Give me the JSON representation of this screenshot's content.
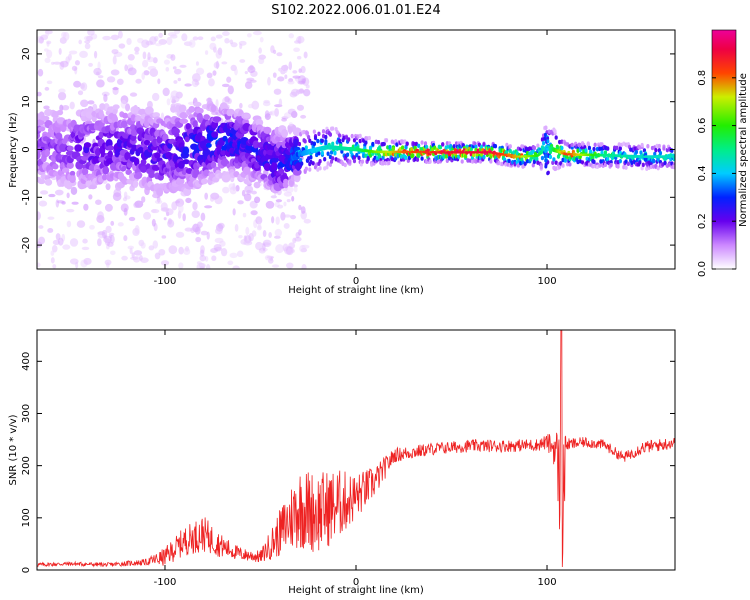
{
  "title": "S102.2022.006.01.01.E24",
  "colors": {
    "snr_line": "#ee2222",
    "axes": "#000000",
    "background": "#ffffff"
  },
  "chart_data": [
    {
      "type": "heatmap",
      "title": "S102.2022.006.01.01.E24",
      "xlabel": "Height of straight line (km)",
      "ylabel": "Frequency (Hz)",
      "xlim": [
        -167,
        167
      ],
      "ylim": [
        -25,
        25
      ],
      "x_ticks": [
        -100,
        0,
        100
      ],
      "x_tick_labels": [
        "-100",
        "0",
        "100"
      ],
      "y_ticks": [
        -20,
        -10,
        0,
        10,
        20
      ],
      "y_tick_labels": [
        "-20",
        "-10",
        "0",
        "10",
        "20"
      ],
      "grid": false,
      "colorbar": {
        "label": "Normalized spectral amplitude",
        "range": [
          0,
          1
        ],
        "ticks": [
          0.0,
          0.2,
          0.4,
          0.6,
          0.8
        ],
        "tick_labels": [
          "0.0",
          "0.2",
          "0.4",
          "0.6",
          "0.8"
        ],
        "colormap": "rainbow (white, violet, blue, cyan, green, yellow, red, magenta)"
      },
      "ridge": [
        {
          "x": -160,
          "y": 0.5,
          "amp": 0.15,
          "width": 5
        },
        {
          "x": -140,
          "y": 0.0,
          "amp": 0.2,
          "width": 5
        },
        {
          "x": -120,
          "y": 0.5,
          "amp": 0.2,
          "width": 5
        },
        {
          "x": -100,
          "y": -1.0,
          "amp": 0.22,
          "width": 5
        },
        {
          "x": -85,
          "y": 0.5,
          "amp": 0.25,
          "width": 5
        },
        {
          "x": -70,
          "y": 2.0,
          "amp": 0.3,
          "width": 4
        },
        {
          "x": -55,
          "y": 0.5,
          "amp": 0.25,
          "width": 4
        },
        {
          "x": -40,
          "y": -3.0,
          "amp": 0.25,
          "width": 4
        },
        {
          "x": -30,
          "y": -1.0,
          "amp": 0.35,
          "width": 2.5
        },
        {
          "x": -15,
          "y": 0.5,
          "amp": 0.45,
          "width": 2
        },
        {
          "x": 0,
          "y": 0.0,
          "amp": 0.5,
          "width": 1.5
        },
        {
          "x": 10,
          "y": -0.5,
          "amp": 0.65,
          "width": 1.2
        },
        {
          "x": 25,
          "y": -0.5,
          "amp": 0.8,
          "width": 1.0
        },
        {
          "x": 50,
          "y": -0.6,
          "amp": 0.9,
          "width": 0.9
        },
        {
          "x": 70,
          "y": -0.6,
          "amp": 0.9,
          "width": 0.9
        },
        {
          "x": 85,
          "y": -1.5,
          "amp": 0.75,
          "width": 1.0
        },
        {
          "x": 95,
          "y": -1.3,
          "amp": 0.6,
          "width": 1.0
        },
        {
          "x": 100,
          "y": 0.5,
          "amp": 0.4,
          "width": 2.5
        },
        {
          "x": 110,
          "y": -1.0,
          "amp": 0.85,
          "width": 1.0
        },
        {
          "x": 130,
          "y": -1.2,
          "amp": 0.5,
          "width": 1.2
        },
        {
          "x": 150,
          "y": -1.5,
          "amp": 0.45,
          "width": 1.2
        },
        {
          "x": 165,
          "y": -1.5,
          "amp": 0.45,
          "width": 1.2
        }
      ]
    },
    {
      "type": "line",
      "xlabel": "Height of straight line (km)",
      "ylabel": "SNR (10 * v/v)",
      "xlim": [
        -167,
        167
      ],
      "ylim": [
        0,
        460
      ],
      "x_ticks": [
        -100,
        0,
        100
      ],
      "x_tick_labels": [
        "-100",
        "0",
        "100"
      ],
      "y_ticks": [
        0,
        100,
        200,
        300,
        400
      ],
      "y_tick_labels": [
        "0",
        "100",
        "200",
        "300",
        "400"
      ],
      "grid": false,
      "series": [
        {
          "color": "#ee2222",
          "x": [
            -167,
            -150,
            -130,
            -110,
            -100,
            -90,
            -80,
            -70,
            -60,
            -50,
            -40,
            -30,
            -20,
            -10,
            0,
            10,
            20,
            40,
            60,
            80,
            95,
            100,
            105,
            108,
            110,
            120,
            130,
            140,
            150,
            160,
            167
          ],
          "y": [
            10,
            12,
            10,
            15,
            25,
            55,
            70,
            45,
            30,
            25,
            70,
            120,
            110,
            125,
            140,
            170,
            220,
            232,
            238,
            238,
            240,
            245,
            230,
            110,
            240,
            245,
            240,
            215,
            235,
            240,
            245
          ],
          "noise": [
            4,
            4,
            4,
            6,
            18,
            28,
            35,
            22,
            12,
            12,
            45,
            80,
            80,
            70,
            45,
            30,
            14,
            12,
            12,
            12,
            12,
            15,
            40,
            200,
            12,
            10,
            10,
            10,
            12,
            12,
            12
          ]
        }
      ]
    }
  ]
}
